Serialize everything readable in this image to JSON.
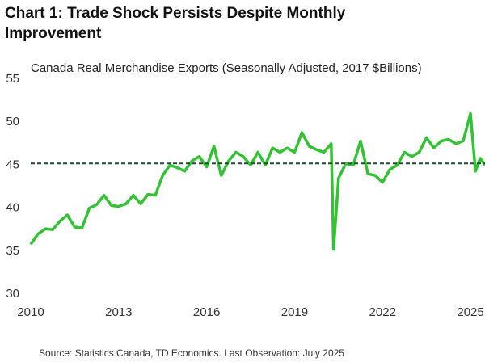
{
  "chart_data": {
    "type": "line",
    "title": "Chart 1: Trade Shock Persists Despite Monthly Improvement",
    "subtitle": "Canada Real Merchandise Exports (Seasonally Adjusted, 2017 $Billions)",
    "source": "Source: Statistics Canada, TD Economics.  Last Observation: July 2025",
    "x": [
      2010.0,
      2010.25,
      2010.5,
      2010.75,
      2011.0,
      2011.25,
      2011.5,
      2011.75,
      2012.0,
      2012.25,
      2012.5,
      2012.75,
      2013.0,
      2013.25,
      2013.5,
      2013.75,
      2014.0,
      2014.25,
      2014.5,
      2014.75,
      2015.0,
      2015.25,
      2015.5,
      2015.75,
      2016.0,
      2016.25,
      2016.5,
      2016.75,
      2017.0,
      2017.25,
      2017.5,
      2017.75,
      2018.0,
      2018.25,
      2018.5,
      2018.75,
      2019.0,
      2019.25,
      2019.5,
      2019.75,
      2020.0,
      2020.25,
      2020.33,
      2020.5,
      2020.75,
      2021.0,
      2021.25,
      2021.5,
      2021.75,
      2022.0,
      2022.25,
      2022.5,
      2022.75,
      2023.0,
      2023.25,
      2023.5,
      2023.75,
      2024.0,
      2024.25,
      2024.5,
      2024.75,
      2025.0,
      2025.17,
      2025.33,
      2025.5
    ],
    "series": [
      {
        "color": "#33c233",
        "values": [
          35.8,
          37.0,
          37.6,
          37.5,
          38.5,
          39.2,
          37.8,
          37.7,
          40.0,
          40.4,
          41.5,
          40.3,
          40.2,
          40.5,
          41.5,
          40.5,
          41.6,
          41.5,
          43.8,
          45.0,
          44.7,
          44.3,
          45.5,
          46.0,
          44.8,
          47.2,
          43.8,
          45.5,
          46.5,
          46.0,
          45.0,
          46.5,
          45.0,
          47.0,
          46.5,
          47.0,
          46.5,
          48.8,
          47.2,
          46.8,
          46.5,
          47.5,
          35.2,
          43.5,
          45.2,
          45.0,
          47.8,
          44.0,
          43.8,
          43.0,
          44.5,
          45.0,
          46.5,
          46.0,
          46.5,
          48.2,
          47.0,
          47.8,
          48.0,
          47.5,
          47.8,
          51.0,
          44.3,
          45.8,
          45.0
        ]
      }
    ],
    "reference_line": {
      "value": 45.2,
      "color": "#1f4a35"
    },
    "xlim": [
      2010,
      2025.55
    ],
    "xticks": [
      2010,
      2013,
      2016,
      2019,
      2022,
      2025
    ],
    "ylim": [
      30,
      55
    ],
    "yticks": [
      30,
      35,
      40,
      45,
      50,
      55
    ]
  }
}
